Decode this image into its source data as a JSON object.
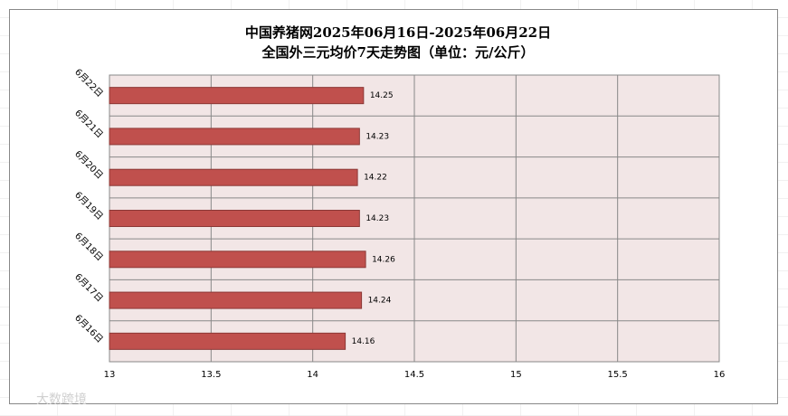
{
  "chart_data": {
    "type": "bar",
    "orientation": "horizontal",
    "title": "中国养猪网2025年06月16日-2025年06月22日",
    "subtitle": "全国外三元均价7天走势图（单位：元/公斤）",
    "categories": [
      "6月16日",
      "6月17日",
      "6月18日",
      "6月19日",
      "6月20日",
      "6月21日",
      "6月22日"
    ],
    "values": [
      14.16,
      14.24,
      14.26,
      14.23,
      14.22,
      14.23,
      14.25
    ],
    "color": "#c0504d",
    "xlim": [
      13,
      16
    ],
    "xticks": [
      13,
      13.5,
      14,
      14.5,
      15,
      15.5,
      16
    ],
    "grid": true,
    "watermark": "大数跨境"
  }
}
